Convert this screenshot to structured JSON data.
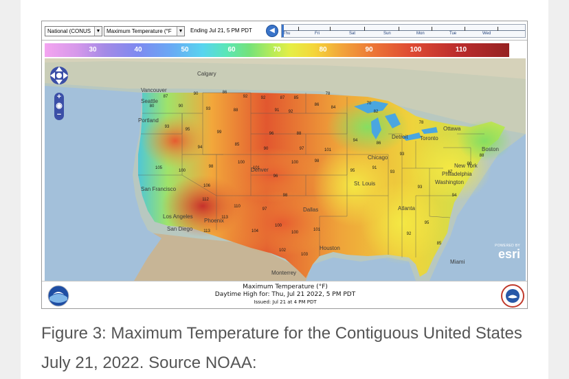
{
  "toolbar": {
    "region_value": "National (CONUS",
    "product_value": "Maximum Temperature (°F",
    "ending_label": "Ending Jul 21,  5 PM PDT",
    "timeline_days": [
      "Thu",
      "Fri",
      "Sat",
      "Sun",
      "Mon",
      "Tue",
      "Wed"
    ]
  },
  "legend": {
    "labels": [
      "30",
      "40",
      "50",
      "60",
      "70",
      "80",
      "90",
      "100",
      "110"
    ]
  },
  "map": {
    "places": [
      "Calgary",
      "Vancouver",
      "Seattle",
      "Portland",
      "San Francisco",
      "Los Angeles",
      "San Diego",
      "Phoenix",
      "Denver",
      "Chicago",
      "Detroit",
      "Toronto",
      "Ottawa",
      "Boston",
      "New York",
      "Philadelphia",
      "Washington",
      "St. Louis",
      "Atlanta",
      "Houston",
      "Dallas",
      "Miami",
      "Monterrey"
    ],
    "temps": [
      {
        "v": "87"
      },
      {
        "v": "90"
      },
      {
        "v": "86"
      },
      {
        "v": "92"
      },
      {
        "v": "92"
      },
      {
        "v": "87"
      },
      {
        "v": "85"
      },
      {
        "v": "78"
      },
      {
        "v": "80"
      },
      {
        "v": "90"
      },
      {
        "v": "93"
      },
      {
        "v": "88"
      },
      {
        "v": "91"
      },
      {
        "v": "92"
      },
      {
        "v": "86"
      },
      {
        "v": "84"
      },
      {
        "v": "70"
      },
      {
        "v": "82"
      },
      {
        "v": "78"
      },
      {
        "v": "93"
      },
      {
        "v": "95"
      },
      {
        "v": "99"
      },
      {
        "v": "96"
      },
      {
        "v": "88"
      },
      {
        "v": "94"
      },
      {
        "v": "85"
      },
      {
        "v": "90"
      },
      {
        "v": "97"
      },
      {
        "v": "101"
      },
      {
        "v": "94"
      },
      {
        "v": "86"
      },
      {
        "v": "93"
      },
      {
        "v": "105"
      },
      {
        "v": "100"
      },
      {
        "v": "98"
      },
      {
        "v": "100"
      },
      {
        "v": "101"
      },
      {
        "v": "96"
      },
      {
        "v": "100"
      },
      {
        "v": "98"
      },
      {
        "v": "95"
      },
      {
        "v": "91"
      },
      {
        "v": "93"
      },
      {
        "v": "106"
      },
      {
        "v": "112"
      },
      {
        "v": "110"
      },
      {
        "v": "97"
      },
      {
        "v": "98"
      },
      {
        "v": "113"
      },
      {
        "v": "113"
      },
      {
        "v": "104"
      },
      {
        "v": "100"
      },
      {
        "v": "100"
      },
      {
        "v": "101"
      },
      {
        "v": "102"
      },
      {
        "v": "103"
      },
      {
        "v": "87"
      },
      {
        "v": "93"
      },
      {
        "v": "94"
      },
      {
        "v": "90"
      },
      {
        "v": "88"
      },
      {
        "v": "95"
      },
      {
        "v": "92"
      },
      {
        "v": "85"
      }
    ]
  },
  "esri": {
    "powered_by": "POWERED BY",
    "name": "esri"
  },
  "map_caption": {
    "line1": "Maximum Temperature (°F)",
    "line2": "Daytime High for: Thu, Jul 21 2022,   5 PM PDT",
    "line3": "Issued: Jul 21 at 4 PM PDT"
  },
  "figure_caption": "Figure 3: Maximum Temperature for the Contiguous United States July 21, 2022. Source NOAA:",
  "colors": {
    "hot": "#d8452e",
    "warm": "#f0a33a",
    "mild": "#dfe94a",
    "cool": "#7fdc6a",
    "water": "#a8c4dc",
    "lake": "#4aa6e0"
  }
}
